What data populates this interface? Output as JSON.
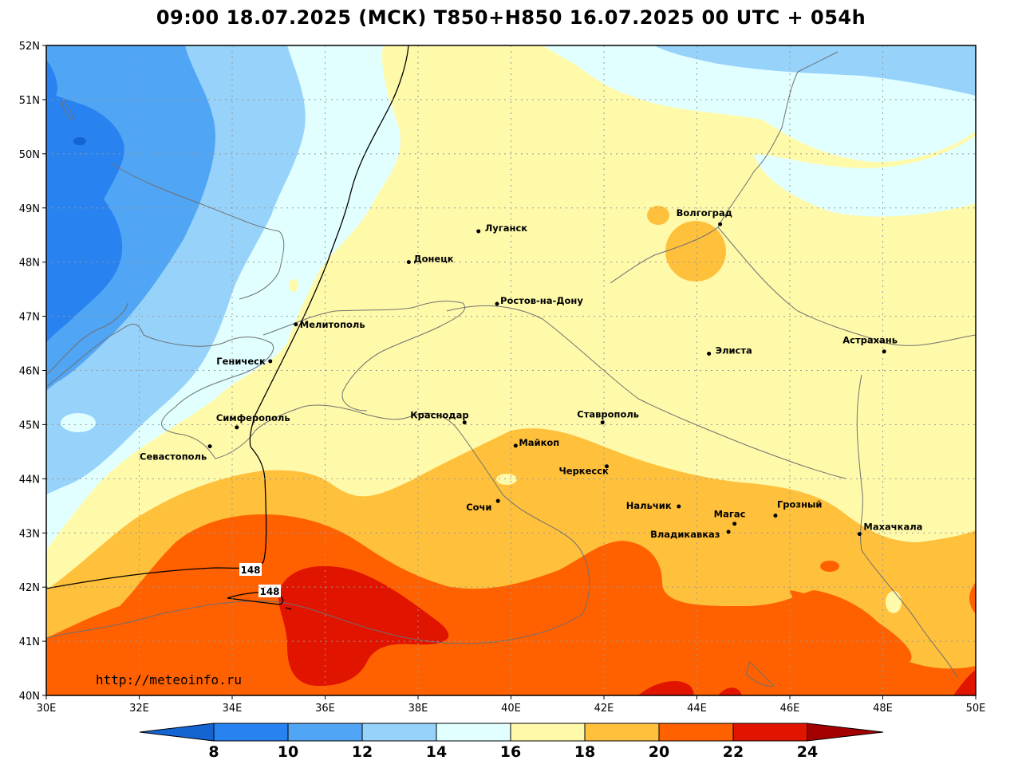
{
  "title": "09:00 18.07.2025 (МСК) T850+H850 16.07.2025 00 UTC + 054h",
  "source_text": "http://meteoinfo.ru",
  "colors": {
    "bands": [
      "#1464d2",
      "#2882f0",
      "#50a5f5",
      "#96d2fa",
      "#e1ffff",
      "#fffaaa",
      "#ffc03c",
      "#ff6000",
      "#e11400",
      "#a50000"
    ],
    "land_border": "#707070",
    "isohypse": "#000000",
    "grid": "#999999"
  },
  "lat_labels": [
    "52N",
    "51N",
    "50N",
    "49N",
    "48N",
    "47N",
    "46N",
    "45N",
    "44N",
    "43N",
    "42N",
    "41N",
    "40N"
  ],
  "lon_labels": [
    "30E",
    "32E",
    "34E",
    "36E",
    "38E",
    "40E",
    "42E",
    "44E",
    "46E",
    "48E",
    "50E"
  ],
  "colorbar": {
    "levels": [
      "8",
      "10",
      "12",
      "14",
      "16",
      "18",
      "20",
      "22",
      "24"
    ]
  },
  "isohypse_labels": [
    "148",
    "148"
  ],
  "cities": [
    {
      "name": "Волгоград",
      "lon": 44.5,
      "lat": 48.7
    },
    {
      "name": "Луганск",
      "lon": 39.3,
      "lat": 48.57
    },
    {
      "name": "Донецк",
      "lon": 37.8,
      "lat": 48.0
    },
    {
      "name": "Ростов-на-Дону",
      "lon": 39.7,
      "lat": 47.23
    },
    {
      "name": "Мелитополь",
      "lon": 35.37,
      "lat": 46.85
    },
    {
      "name": "Геническ",
      "lon": 34.82,
      "lat": 46.17
    },
    {
      "name": "Элиста",
      "lon": 44.26,
      "lat": 46.31
    },
    {
      "name": "Астрахань",
      "lon": 48.03,
      "lat": 46.35
    },
    {
      "name": "Краснодар",
      "lon": 39.0,
      "lat": 45.04
    },
    {
      "name": "Ставрополь",
      "lon": 41.97,
      "lat": 45.04
    },
    {
      "name": "Симферополь",
      "lon": 34.1,
      "lat": 44.95
    },
    {
      "name": "Севастополь",
      "lon": 33.52,
      "lat": 44.6
    },
    {
      "name": "Майкоп",
      "lon": 40.1,
      "lat": 44.61
    },
    {
      "name": "Черкесск",
      "lon": 42.06,
      "lat": 44.23
    },
    {
      "name": "Нальчик",
      "lon": 43.61,
      "lat": 43.49
    },
    {
      "name": "Сочи",
      "lon": 39.72,
      "lat": 43.59
    },
    {
      "name": "Магас",
      "lon": 44.81,
      "lat": 43.17
    },
    {
      "name": "Грозный",
      "lon": 45.69,
      "lat": 43.32
    },
    {
      "name": "Владикавказ",
      "lon": 44.68,
      "lat": 43.02
    },
    {
      "name": "Махачкала",
      "lon": 47.5,
      "lat": 42.98
    }
  ]
}
